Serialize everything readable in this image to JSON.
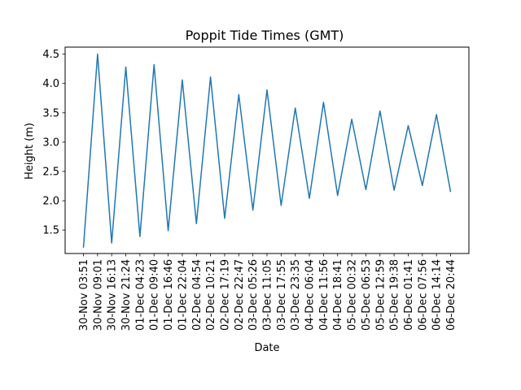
{
  "chart_data": {
    "type": "line",
    "title": "Poppit Tide Times (GMT)",
    "xlabel": "Date",
    "ylabel": "Height (m)",
    "ylim": [
      1.1,
      4.62
    ],
    "yticks": [
      "1.5",
      "2.0",
      "2.5",
      "3.0",
      "3.5",
      "4.0",
      "4.5"
    ],
    "grid": false,
    "line_color": "#1f77b4",
    "categories": [
      "30-Nov 03:51",
      "30-Nov 09:01",
      "30-Nov 16:13",
      "30-Nov 21:24",
      "01-Dec 04:23",
      "01-Dec 09:40",
      "01-Dec 16:46",
      "01-Dec 22:04",
      "02-Dec 04:54",
      "02-Dec 10:21",
      "02-Dec 17:19",
      "02-Dec 22:47",
      "03-Dec 05:26",
      "03-Dec 11:05",
      "03-Dec 17:55",
      "03-Dec 23:35",
      "04-Dec 06:04",
      "04-Dec 11:56",
      "04-Dec 18:41",
      "05-Dec 00:32",
      "05-Dec 06:53",
      "05-Dec 12:59",
      "05-Dec 19:38",
      "06-Dec 01:41",
      "06-Dec 07:56",
      "06-Dec 14:14",
      "06-Dec 20:44"
    ],
    "values": [
      1.2,
      4.5,
      1.28,
      4.28,
      1.39,
      4.32,
      1.49,
      4.06,
      1.61,
      4.11,
      1.7,
      3.81,
      1.84,
      3.89,
      1.92,
      3.58,
      2.04,
      3.68,
      2.09,
      3.39,
      2.19,
      3.53,
      2.18,
      3.28,
      2.26,
      3.47,
      2.15
    ]
  }
}
